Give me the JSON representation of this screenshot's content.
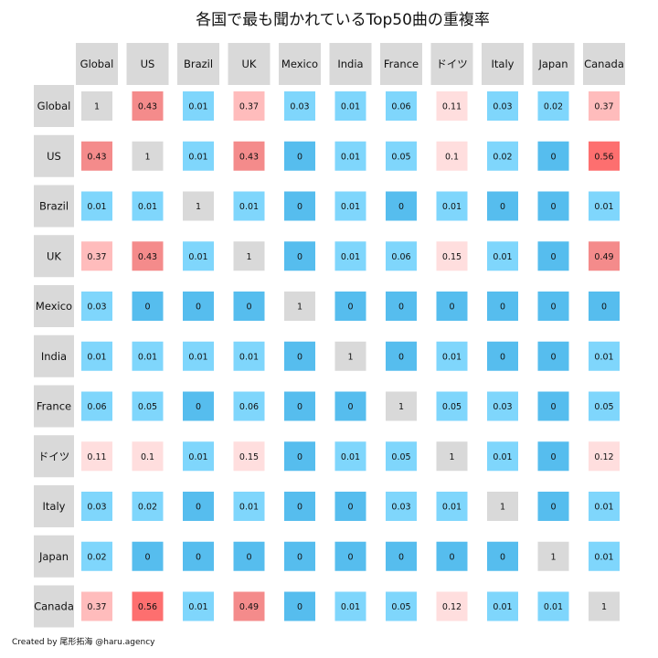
{
  "chart_data": {
    "type": "heatmap",
    "title": "各国で最も聞かれているTop50曲の重複率",
    "credit": "Created by 尾形拓海 @haru.agency",
    "categories": [
      "Global",
      "US",
      "Brazil",
      "UK",
      "Mexico",
      "India",
      "France",
      "ドイツ",
      "Italy",
      "Japan",
      "Canada"
    ],
    "matrix": [
      [
        1,
        0.43,
        0.01,
        0.37,
        0.03,
        0.01,
        0.06,
        0.11,
        0.03,
        0.02,
        0.37
      ],
      [
        0.43,
        1,
        0.01,
        0.43,
        0,
        0.01,
        0.05,
        0.1,
        0.02,
        0,
        0.56
      ],
      [
        0.01,
        0.01,
        1,
        0.01,
        0,
        0.01,
        0,
        0.01,
        0,
        0,
        0.01
      ],
      [
        0.37,
        0.43,
        0.01,
        1,
        0,
        0.01,
        0.06,
        0.15,
        0.01,
        0,
        0.49
      ],
      [
        0.03,
        0,
        0,
        0,
        1,
        0,
        0,
        0,
        0,
        0,
        0
      ],
      [
        0.01,
        0.01,
        0.01,
        0.01,
        0,
        1,
        0,
        0.01,
        0,
        0,
        0.01
      ],
      [
        0.06,
        0.05,
        0,
        0.06,
        0,
        0,
        1,
        0.05,
        0.03,
        0,
        0.05
      ],
      [
        0.11,
        0.1,
        0.01,
        0.15,
        0,
        0.01,
        0.05,
        1,
        0.01,
        0,
        0.12
      ],
      [
        0.03,
        0.02,
        0,
        0.01,
        0,
        0,
        0.03,
        0.01,
        1,
        0,
        0.01
      ],
      [
        0.02,
        0,
        0,
        0,
        0,
        0,
        0,
        0,
        0,
        1,
        0.01
      ],
      [
        0.37,
        0.56,
        0.01,
        0.49,
        0,
        0.01,
        0.05,
        0.12,
        0.01,
        0.01,
        1
      ]
    ],
    "colors": {
      "diagonal": "#d9d9d9",
      "zero": "#56bdee",
      "low": "#7fd6fc",
      "pale_pink": "#ffdede",
      "pink": "#ffbcbc",
      "salmon": "#f48b8b",
      "red": "#fd6f6f",
      "label_box": "#d9d9d9"
    }
  }
}
